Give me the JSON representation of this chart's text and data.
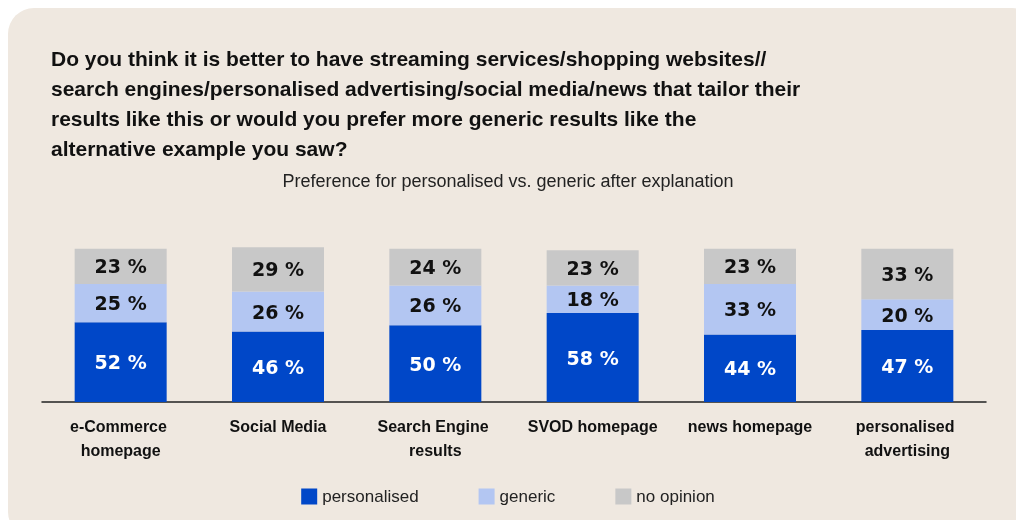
{
  "chart_data": {
    "type": "bar",
    "stacked": true,
    "title": "Do you think it is better to have streaming services/shopping websites// search engines/personalised advertising/social media/news that tailor their results like this or would you prefer more generic results like the alternative example you saw?",
    "subtitle": "Preference for personalised vs. generic after explanation",
    "categories": [
      "e-Commerce homepage",
      "Social Media",
      "Search Engine results",
      "SVOD homepage",
      "news homepage",
      "personalised advertising"
    ],
    "series": [
      {
        "name": "personalised",
        "color": "#0047c8",
        "values": [
          52,
          46,
          50,
          58,
          44,
          47
        ],
        "value_labels": [
          "52 %",
          "46 %",
          "50 %",
          "58 %",
          "44 %",
          "47 %"
        ]
      },
      {
        "name": "generic",
        "color": "#b3c6f2",
        "values": [
          25,
          26,
          26,
          18,
          33,
          20
        ],
        "value_labels": [
          "25 %",
          "26 %",
          "26 %",
          "18 %",
          "33 %",
          "20 %"
        ]
      },
      {
        "name": "no opinion",
        "color": "#c8c8c8",
        "values": [
          23,
          29,
          24,
          23,
          23,
          33
        ],
        "value_labels": [
          "23 %",
          "29 %",
          "24 %",
          "23 %",
          "23 %",
          "33 %"
        ]
      }
    ],
    "legend": "bottom",
    "grid": false,
    "tick_labels": "x"
  }
}
